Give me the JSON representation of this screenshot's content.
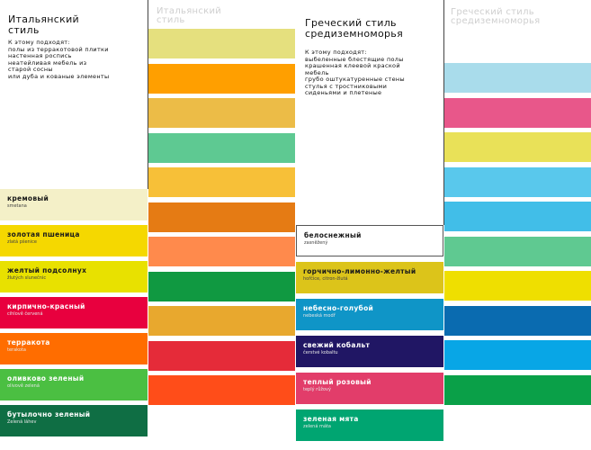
{
  "italian": {
    "title": "Итальянский\nстиль",
    "intro": "К этому подходят:\nполы из терракотовой плитки\nнастенная роспись\nнеатейливая мебель из\nстарой сосны\nили дуба и кованые элементы",
    "ghost_title": "Итальянский\nстиль",
    "swatches": [
      {
        "name": "кремовый",
        "sub": "smetana",
        "color": "#f4f0c8"
      },
      {
        "name": "золотая пшеница",
        "sub": "zlatá pšenice",
        "color": "#f5d800"
      },
      {
        "name": "желтый подсолнух",
        "sub": "žlutých slunečnic",
        "color": "#e8e100"
      },
      {
        "name": "кирпично-красный",
        "sub": "cihlově červená",
        "color": "#e8003e"
      },
      {
        "name": "терракота",
        "sub": "terakota",
        "color": "#ff6d00"
      },
      {
        "name": "оливково зеленый",
        "sub": "olivově zelená",
        "color": "#4bbf42"
      },
      {
        "name": "бутылочно зеленый",
        "sub": "Zelená láhev",
        "color": "#0f6e44"
      }
    ],
    "column": [
      "#e5e07e",
      "#ff9f00",
      "#ecbc47",
      "#5ec992",
      "#f7c038",
      "#e57b14",
      "#ff8a4c",
      "#109941",
      "#e8a82e",
      "#e52b39",
      "#ff4d19"
    ]
  },
  "greek": {
    "title": "Греческий стиль\nсредиземноморья",
    "intro": "К этому подходят:\nвыбеленные блестящие полы\nкрашенная клеевой краской\nмебель\nгрубо оштукатуренные стены\nстулья с тростниковыми\nсиденьями и плетеные",
    "ghost_title": "Греческий стиль\nсредиземноморья",
    "swatches": [
      {
        "name": "белоснежный",
        "sub": "zasněžený",
        "color": "#ffffff"
      },
      {
        "name": "горчично-лимонно-желтый",
        "sub": "hořčice, citron-žlutá",
        "color": "#dcc41a"
      },
      {
        "name": "небесно-голубой",
        "sub": "nebeská modř",
        "color": "#0f95c7"
      },
      {
        "name": "свежий кобальт",
        "sub": "čerstvé kobaltu",
        "color": "#201664"
      },
      {
        "name": "теплый розовый",
        "sub": "teplý růžový",
        "color": "#e23d6a"
      },
      {
        "name": "зеленая мята",
        "sub": "zelená máta",
        "color": "#00a571"
      }
    ],
    "column": [
      "#a9dceb",
      "#e8578a",
      "#e9e158",
      "#59c8ec",
      "#41bee8",
      "#5fc991",
      "#efdf00",
      "#0a6bb0",
      "#08a6e6",
      "#0aa048"
    ]
  }
}
